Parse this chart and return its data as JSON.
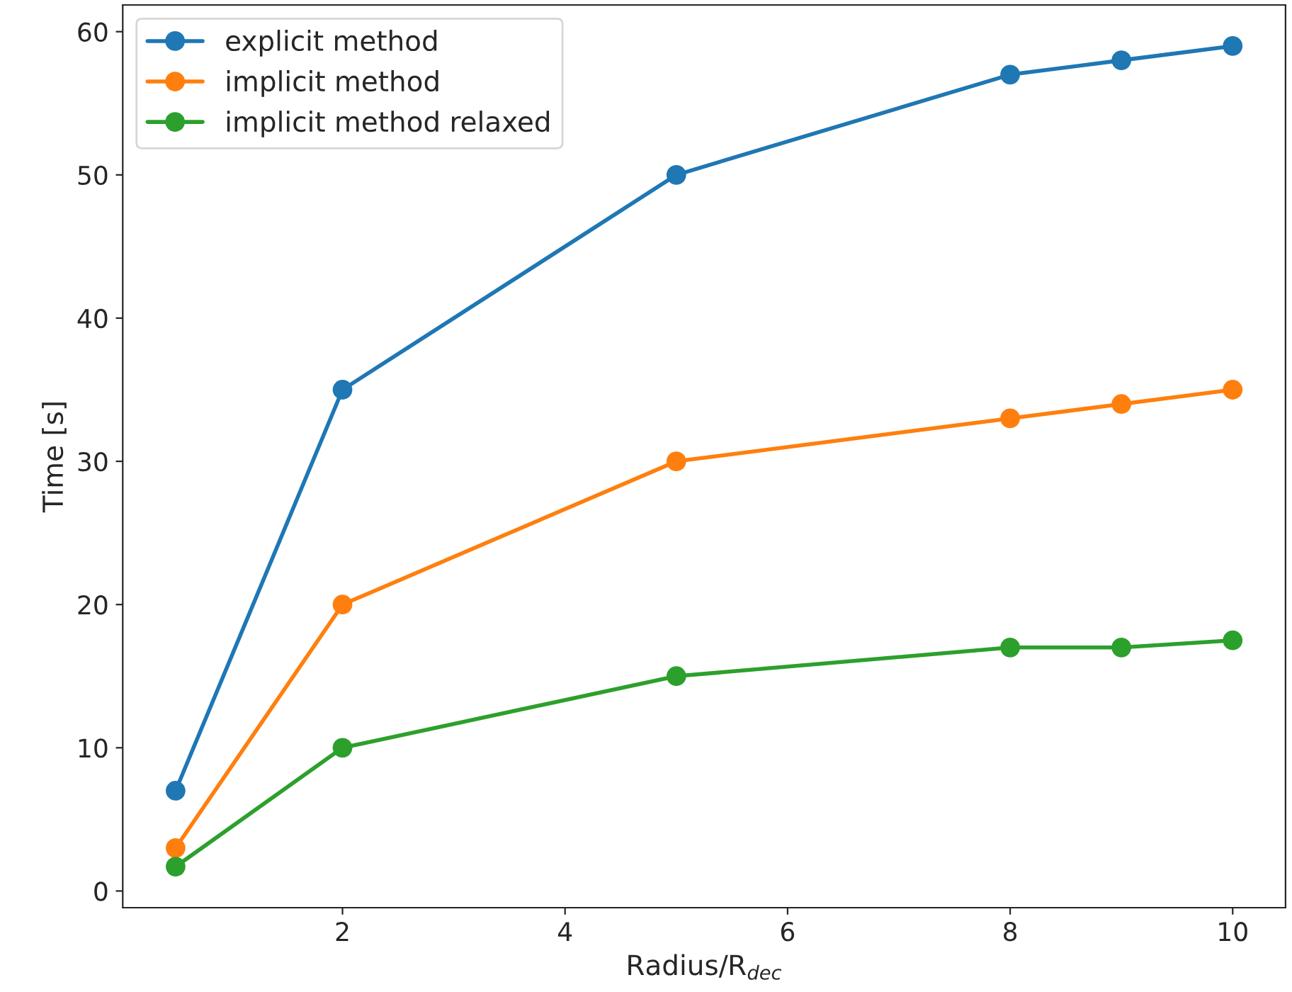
{
  "chart_data": {
    "type": "line",
    "xlabel": "Radius/R$_{dec}$",
    "ylabel": "Time [s]",
    "x": [
      0.5,
      2,
      5,
      8,
      9,
      10
    ],
    "series": [
      {
        "name": "explicit method",
        "color": "#1f77b4",
        "values": [
          7,
          35,
          50,
          57,
          58,
          59
        ]
      },
      {
        "name": "implicit method",
        "color": "#ff7f0e",
        "values": [
          3,
          20,
          30,
          33,
          34,
          35
        ]
      },
      {
        "name": "implicit method relaxed",
        "color": "#2ca02c",
        "values": [
          1.7,
          10,
          15,
          17,
          17,
          17.5
        ]
      }
    ],
    "xlim": [
      0.025,
      10.475
    ],
    "ylim": [
      -1.165,
      61.865
    ],
    "xticks": [
      2,
      4,
      6,
      8,
      10
    ],
    "yticks": [
      0,
      10,
      20,
      30,
      40,
      50,
      60
    ],
    "grid": false,
    "legend": "top left",
    "marker": "circle",
    "line_style": "solid"
  }
}
